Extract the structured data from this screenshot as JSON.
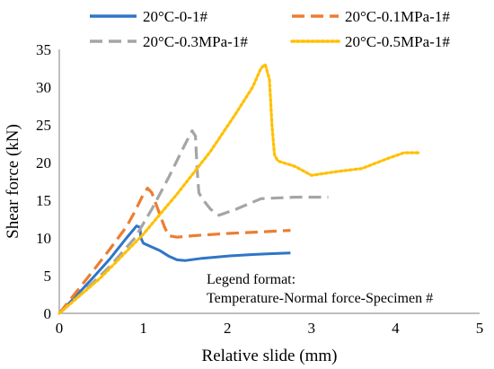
{
  "chart_data": {
    "type": "line",
    "xlabel": "Relative slide (mm)",
    "ylabel": "Shear force (kN)",
    "xlim": [
      0,
      5
    ],
    "ylim": [
      0,
      35
    ],
    "xticks": [
      "0",
      "1",
      "2",
      "3",
      "4",
      "5"
    ],
    "yticks": [
      "0",
      "5",
      "10",
      "15",
      "20",
      "25",
      "30",
      "35"
    ],
    "grid": false,
    "legend_position": "top",
    "annotation": [
      "Legend format:",
      "Temperature-Normal force-Specimen #"
    ],
    "series": [
      {
        "name": "20°C-0-1#",
        "color": "#2f75c8",
        "style": "solid",
        "x": [
          0,
          0.2,
          0.4,
          0.6,
          0.8,
          0.92,
          0.96,
          0.97,
          1.0,
          1.1,
          1.2,
          1.3,
          1.4,
          1.5,
          1.7,
          2.0,
          2.3,
          2.5,
          2.75
        ],
        "y": [
          0,
          2.3,
          4.7,
          7.2,
          10.0,
          11.6,
          11.4,
          10.0,
          9.3,
          8.8,
          8.3,
          7.6,
          7.1,
          7.0,
          7.3,
          7.6,
          7.8,
          7.9,
          8.0
        ]
      },
      {
        "name": "20°C-0.1MPa-1#",
        "color": "#ed7d31",
        "style": "dashed",
        "x": [
          0,
          0.2,
          0.4,
          0.6,
          0.8,
          0.9,
          1.0,
          1.05,
          1.1,
          1.15,
          1.25,
          1.3,
          1.4,
          1.6,
          2.0,
          2.4,
          2.75
        ],
        "y": [
          0,
          2.8,
          5.6,
          8.5,
          11.5,
          13.5,
          15.8,
          16.6,
          16.0,
          14.5,
          11.5,
          10.3,
          10.1,
          10.3,
          10.6,
          10.8,
          11.0
        ]
      },
      {
        "name": "20°C-0.3MPa-1#",
        "color": "#a5a5a5",
        "style": "dashed",
        "x": [
          0,
          0.3,
          0.6,
          0.9,
          1.1,
          1.3,
          1.5,
          1.58,
          1.62,
          1.64,
          1.66,
          1.7,
          1.8,
          1.9,
          2.1,
          2.4,
          2.8,
          3.2
        ],
        "y": [
          0,
          3.0,
          6.2,
          10.0,
          13.8,
          18.0,
          22.5,
          24.2,
          23.5,
          19.0,
          16.0,
          15.2,
          13.8,
          13.0,
          13.8,
          15.2,
          15.4,
          15.4
        ]
      },
      {
        "name": "20°C-0.5MPa-1#",
        "color": "#ffc000",
        "style": "dotted",
        "x": [
          0,
          0.5,
          1.0,
          1.4,
          1.8,
          2.1,
          2.3,
          2.4,
          2.45,
          2.5,
          2.53,
          2.56,
          2.6,
          2.8,
          3.0,
          3.3,
          3.6,
          3.9,
          4.1,
          4.3
        ],
        "y": [
          0,
          4.8,
          10.5,
          15.8,
          21.5,
          26.5,
          30.0,
          32.5,
          33.0,
          31.0,
          25.0,
          21.0,
          20.2,
          19.5,
          18.3,
          18.8,
          19.2,
          20.5,
          21.3,
          21.3
        ]
      }
    ]
  }
}
